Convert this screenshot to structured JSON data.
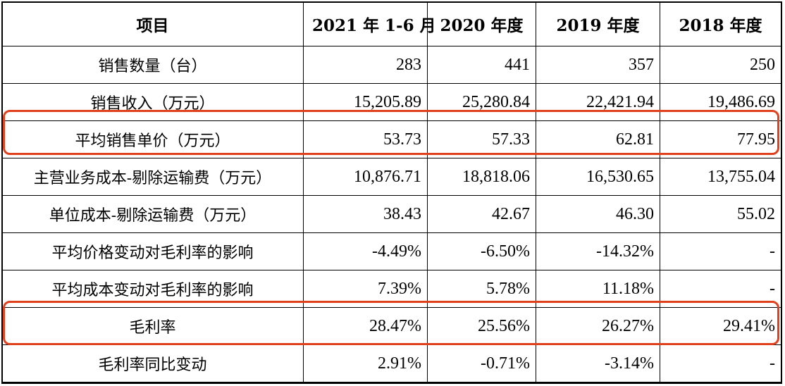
{
  "table": {
    "headers": [
      "项目",
      "2021 年 1-6 月",
      "2020 年度",
      "2019 年度",
      "2018 年度"
    ],
    "rows": [
      {
        "label": "销售数量（台）",
        "values": [
          "283",
          "441",
          "357",
          "250"
        ]
      },
      {
        "label": "销售收入（万元）",
        "values": [
          "15,205.89",
          "25,280.84",
          "22,421.94",
          "19,486.69"
        ]
      },
      {
        "label": "平均销售单价（万元）",
        "values": [
          "53.73",
          "57.33",
          "62.81",
          "77.95"
        ]
      },
      {
        "label": "主营业务成本-剔除运输费（万元）",
        "values": [
          "10,876.71",
          "18,818.06",
          "16,530.65",
          "13,755.04"
        ]
      },
      {
        "label": "单位成本-剔除运输费（万元）",
        "values": [
          "38.43",
          "42.67",
          "46.30",
          "55.02"
        ]
      },
      {
        "label": "平均价格变动对毛利率的影响",
        "values": [
          "-4.49%",
          "-6.50%",
          "-14.32%",
          "-"
        ]
      },
      {
        "label": "平均成本变动对毛利率的影响",
        "values": [
          "7.39%",
          "5.78%",
          "11.18%",
          "-"
        ]
      },
      {
        "label": "毛利率",
        "values": [
          "28.47%",
          "25.56%",
          "26.27%",
          "29.41%"
        ]
      },
      {
        "label": "毛利率同比变动",
        "values": [
          "2.91%",
          "-0.71%",
          "-3.14%",
          "-"
        ]
      }
    ]
  },
  "colors": {
    "highlight_border": "#e0401c",
    "grid": "#000000"
  }
}
